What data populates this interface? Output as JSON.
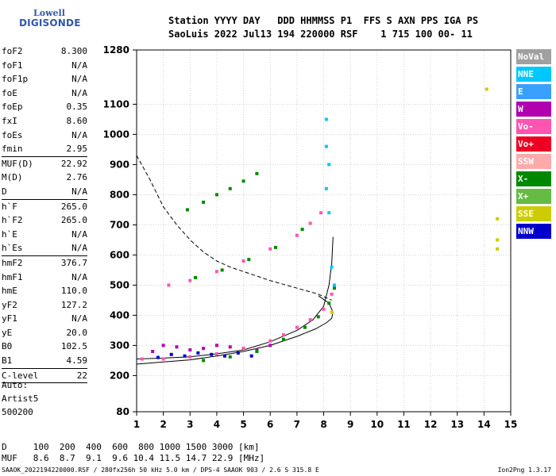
{
  "logo": {
    "line1": "Lowell",
    "line2": "DIGISONDE"
  },
  "header": {
    "line1": "Station YYYY DAY   DDD HHMMSS P1  FFS S AXN PPS IGA PS",
    "line2": "SaoLuis 2022 Jul13 194 220000 RSF    1 715 100 00- 11"
  },
  "params": [
    {
      "label": "foF2",
      "value": "8.300"
    },
    {
      "label": "foF1",
      "value": "N/A"
    },
    {
      "label": "foF1p",
      "value": "N/A"
    },
    {
      "label": "foE",
      "value": "N/A"
    },
    {
      "label": "foEp",
      "value": "0.35"
    },
    {
      "label": "fxI",
      "value": "8.60"
    },
    {
      "label": "foEs",
      "value": "N/A"
    },
    {
      "label": "fmin",
      "value": "2.95"
    },
    {
      "sep": true
    },
    {
      "label": "MUF(D)",
      "value": "22.92"
    },
    {
      "label": "M(D)",
      "value": "2.76"
    },
    {
      "label": "D",
      "value": "N/A"
    },
    {
      "sep": true
    },
    {
      "label": "h`F",
      "value": "265.0"
    },
    {
      "label": "h`F2",
      "value": "265.0"
    },
    {
      "label": "h`E",
      "value": "N/A"
    },
    {
      "label": "h`Es",
      "value": "N/A"
    },
    {
      "sep": true
    },
    {
      "label": "hmF2",
      "value": "376.7"
    },
    {
      "label": "hmF1",
      "value": "N/A"
    },
    {
      "label": "hmE",
      "value": "110.0"
    },
    {
      "label": "yF2",
      "value": "127.2"
    },
    {
      "label": "yF1",
      "value": "N/A"
    },
    {
      "label": "yE",
      "value": "20.0"
    },
    {
      "label": "B0",
      "value": "102.5"
    },
    {
      "label": "B1",
      "value": "4.59"
    },
    {
      "sep": true
    },
    {
      "label": "C-level",
      "value": "22"
    },
    {
      "sep": true
    }
  ],
  "artist": {
    "line1": "Auto:",
    "line2": "Artist5",
    "line3": "500200"
  },
  "legend": [
    {
      "label": "NoVal",
      "color": "#a0a0a0"
    },
    {
      "label": "NNE",
      "color": "#00c8ff"
    },
    {
      "label": "E",
      "color": "#3aa0ff"
    },
    {
      "label": "W",
      "color": "#b000b0"
    },
    {
      "label": "Vo-",
      "color": "#ff55b0"
    },
    {
      "label": "Vo+",
      "color": "#ee0022"
    },
    {
      "label": "SSW",
      "color": "#ffaaaa"
    },
    {
      "label": "X-",
      "color": "#008800"
    },
    {
      "label": "X+",
      "color": "#66bb44"
    },
    {
      "label": "SSE",
      "color": "#cccc00"
    },
    {
      "label": "NNW",
      "color": "#0000cc"
    }
  ],
  "dmuf": {
    "d_line": "D     100  200  400  600  800 1000 1500 3000 [km]",
    "muf_line": "MUF   8.6  8.7  9.1  9.6 10.4 11.5 14.7 22.9 [MHz]"
  },
  "footer": "SAAOK_2022194220000.RSF / 280fx256h 50 kHz 5.0 km / DPS-4 SAAOK 903 / 2.6 S 315.8 E",
  "version": "Ion2Png 1.3.17",
  "chart_data": {
    "type": "scatter",
    "xlim": [
      1,
      15
    ],
    "ylim": [
      80,
      1280
    ],
    "x_ticks": [
      1,
      2,
      3,
      4,
      5,
      6,
      7,
      8,
      9,
      10,
      11,
      12,
      13,
      14,
      15
    ],
    "y_ticks": [
      80,
      200,
      300,
      400,
      500,
      600,
      700,
      800,
      900,
      1000,
      1100,
      1280
    ],
    "grid": true,
    "series": [
      {
        "name": "W",
        "color": "#b000b0",
        "points": [
          [
            1.6,
            280
          ],
          [
            2.0,
            300
          ],
          [
            2.5,
            295
          ],
          [
            3.0,
            285
          ],
          [
            3.5,
            290
          ],
          [
            4.0,
            300
          ],
          [
            4.5,
            295
          ],
          [
            5.0,
            290
          ],
          [
            5.5,
            285
          ],
          [
            6.0,
            300
          ]
        ]
      },
      {
        "name": "NNW",
        "color": "#0000cc",
        "points": [
          [
            1.8,
            260
          ],
          [
            2.3,
            270
          ],
          [
            2.8,
            265
          ],
          [
            3.3,
            275
          ],
          [
            3.8,
            270
          ],
          [
            4.3,
            265
          ],
          [
            4.8,
            275
          ],
          [
            5.3,
            265
          ]
        ]
      },
      {
        "name": "Vo-",
        "color": "#ff55b0",
        "points": [
          [
            1.2,
            255
          ],
          [
            2,
            255
          ],
          [
            3,
            262
          ],
          [
            4,
            272
          ],
          [
            5,
            290
          ],
          [
            6,
            315
          ],
          [
            6.5,
            335
          ],
          [
            7,
            360
          ],
          [
            7.5,
            385
          ],
          [
            8,
            420
          ],
          [
            8.3,
            470
          ],
          [
            2.2,
            500
          ],
          [
            3,
            515
          ],
          [
            4,
            545
          ],
          [
            5,
            580
          ],
          [
            6,
            620
          ],
          [
            7,
            665
          ],
          [
            7.5,
            705
          ],
          [
            7.9,
            740
          ]
        ]
      },
      {
        "name": "X-",
        "color": "#008800",
        "points": [
          [
            3.5,
            250
          ],
          [
            4.5,
            262
          ],
          [
            5.5,
            280
          ],
          [
            6.5,
            320
          ],
          [
            7.3,
            360
          ],
          [
            7.8,
            395
          ],
          [
            8.2,
            440
          ],
          [
            8.4,
            490
          ],
          [
            2.9,
            750
          ],
          [
            3.5,
            775
          ],
          [
            4,
            800
          ],
          [
            4.5,
            820
          ],
          [
            5,
            845
          ],
          [
            5.5,
            870
          ],
          [
            3.2,
            525
          ],
          [
            4.2,
            550
          ],
          [
            5.2,
            585
          ],
          [
            6.2,
            625
          ],
          [
            7.2,
            685
          ]
        ]
      },
      {
        "name": "NNE",
        "color": "#00c8ff",
        "points": [
          [
            8.1,
            1050
          ],
          [
            8.1,
            960
          ],
          [
            8.2,
            900
          ],
          [
            8.1,
            820
          ],
          [
            8.2,
            740
          ],
          [
            8.3,
            560
          ],
          [
            8.4,
            500
          ]
        ]
      },
      {
        "name": "SSE",
        "color": "#cccc00",
        "points": [
          [
            14.5,
            720
          ],
          [
            14.5,
            650
          ],
          [
            14.5,
            620
          ],
          [
            14.1,
            1150
          ],
          [
            8.3,
            410
          ]
        ]
      }
    ],
    "trace_curve": {
      "points": [
        [
          1,
          255
        ],
        [
          2,
          258
        ],
        [
          3,
          262
        ],
        [
          4,
          272
        ],
        [
          5,
          285
        ],
        [
          6,
          312
        ],
        [
          7,
          350
        ],
        [
          7.6,
          385
        ],
        [
          8,
          430
        ],
        [
          8.2,
          500
        ],
        [
          8.3,
          570
        ],
        [
          8.35,
          660
        ]
      ]
    },
    "profile_curve": {
      "points": [
        [
          1,
          238
        ],
        [
          2,
          245
        ],
        [
          3,
          252
        ],
        [
          4,
          265
        ],
        [
          5,
          280
        ],
        [
          6,
          300
        ],
        [
          7,
          330
        ],
        [
          7.7,
          355
        ],
        [
          8.1,
          375
        ],
        [
          8.3,
          390
        ],
        [
          8.35,
          410
        ],
        [
          8.2,
          440
        ],
        [
          7.8,
          465
        ]
      ]
    },
    "muf_curve": {
      "points": [
        [
          1,
          930
        ],
        [
          1.5,
          850
        ],
        [
          2,
          760
        ],
        [
          2.5,
          700
        ],
        [
          3,
          650
        ],
        [
          3.5,
          610
        ],
        [
          4,
          580
        ],
        [
          4.5,
          560
        ],
        [
          5,
          545
        ],
        [
          5.5,
          530
        ],
        [
          6,
          515
        ],
        [
          7,
          490
        ],
        [
          7.8,
          470
        ],
        [
          8.3,
          450
        ]
      ]
    }
  }
}
